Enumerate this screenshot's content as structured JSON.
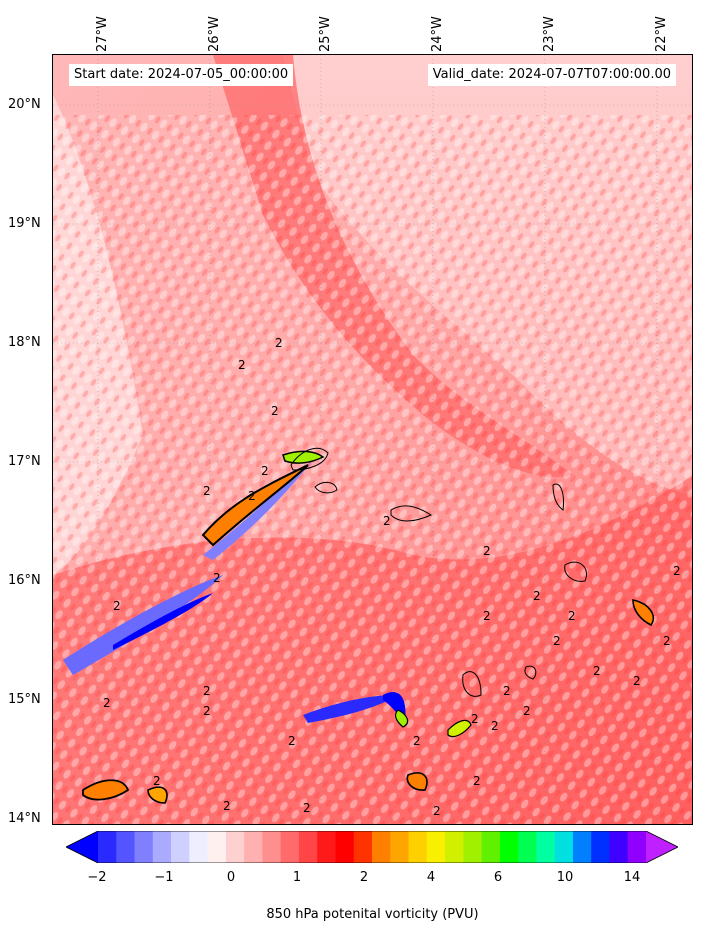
{
  "map": {
    "start_date": "Start date: 2024-07-05_00:00:00",
    "valid_date": "Valid_date: 2024-07-07T07:00:00.00",
    "lon_labels": [
      "27°W",
      "26°W",
      "25°W",
      "24°W",
      "23°W",
      "22°W"
    ],
    "lat_labels": [
      "20°N",
      "19°N",
      "18°N",
      "17°N",
      "16°N",
      "15°N",
      "14°N"
    ],
    "extent": {
      "lon_min": -27.3,
      "lon_max": -21.6,
      "lat_min": 13.95,
      "lat_max": 20.4
    },
    "contour_label": "2"
  },
  "colorbar": {
    "label": "850 hPa potenital vorticity (PVU)",
    "tick_labels": [
      "−2",
      "−1",
      "0",
      "1",
      "2",
      "4",
      "6",
      "10",
      "14"
    ],
    "colors": [
      "#0000ff",
      "#2a2aff",
      "#5555ff",
      "#8080ff",
      "#aaaaff",
      "#d0d0ff",
      "#eeeeff",
      "#fff0f0",
      "#ffd0d0",
      "#ffb0b0",
      "#ff8f8f",
      "#ff6b6b",
      "#ff4545",
      "#ff1a1a",
      "#ff0000",
      "#ff3300",
      "#ff8000",
      "#ffa500",
      "#ffd000",
      "#f8f000",
      "#d0f000",
      "#a0f000",
      "#60f000",
      "#00ff00",
      "#00ff50",
      "#00ffa0",
      "#00e0e0",
      "#0080ff",
      "#0030ff",
      "#4000ff",
      "#9000ff",
      "#c020ff"
    ]
  }
}
